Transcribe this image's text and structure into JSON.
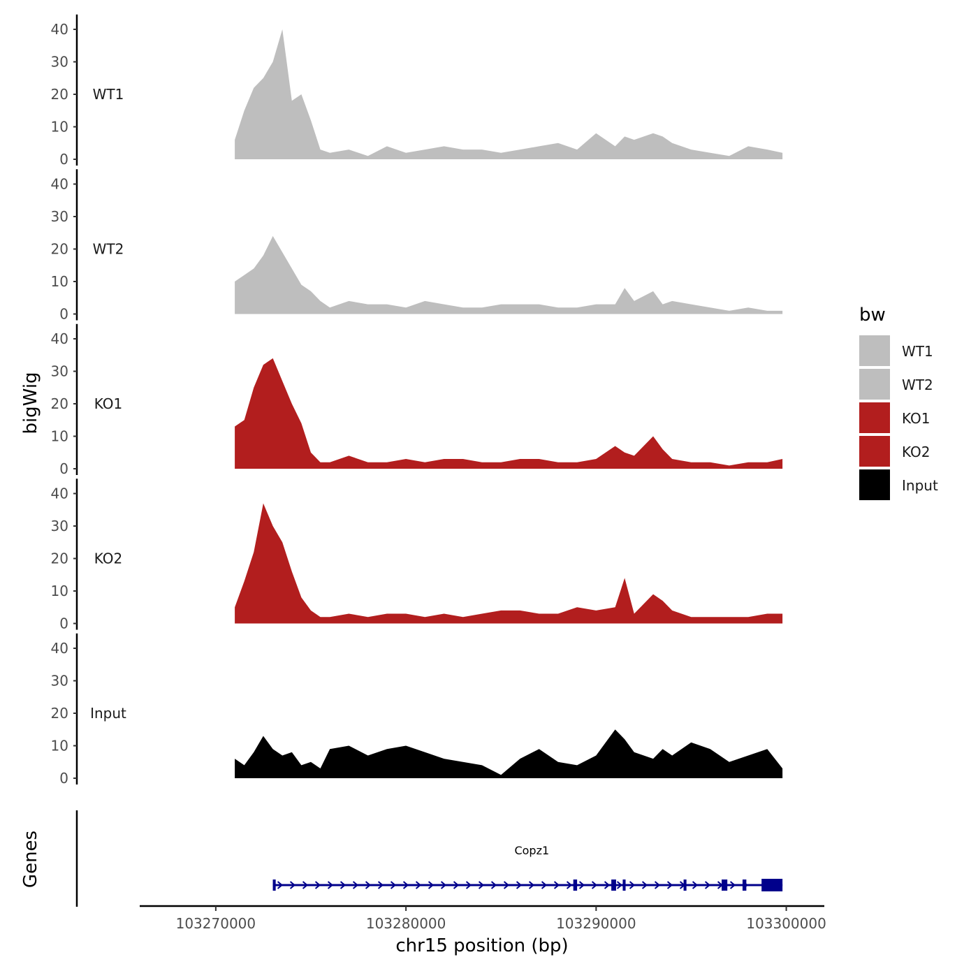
{
  "chart_data": {
    "type": "area",
    "ylabel": "bigWig",
    "genes_label": "Genes",
    "xlabel": "chr15 position (bp)",
    "xlim": [
      103266000,
      103302000
    ],
    "x_ticks": [
      103270000,
      103280000,
      103290000,
      103300000
    ],
    "x_tick_labels": [
      "103270000",
      "103280000",
      "103290000",
      "103300000"
    ],
    "ylim": [
      0,
      42
    ],
    "y_ticks": [
      0,
      10,
      20,
      30,
      40
    ],
    "y_tick_labels": [
      "0",
      "10",
      "20",
      "30",
      "40"
    ],
    "legend": {
      "title": "bw",
      "position": "right",
      "entries": [
        {
          "label": "WT1",
          "color": "#bebebe"
        },
        {
          "label": "WT2",
          "color": "#bebebe"
        },
        {
          "label": "KO1",
          "color": "#b21e1e"
        },
        {
          "label": "KO2",
          "color": "#b21e1e"
        },
        {
          "label": "Input",
          "color": "#000000"
        }
      ]
    },
    "x": [
      103271000,
      103271500,
      103272000,
      103272500,
      103273000,
      103273500,
      103274000,
      103274500,
      103275000,
      103275500,
      103276000,
      103277000,
      103278000,
      103279000,
      103280000,
      103281000,
      103282000,
      103283000,
      103284000,
      103285000,
      103286000,
      103287000,
      103288000,
      103289000,
      103290000,
      103291000,
      103291500,
      103292000,
      103293000,
      103293500,
      103294000,
      103295000,
      103296000,
      103297000,
      103298000,
      103299000,
      103299800
    ],
    "series": [
      {
        "name": "WT1",
        "color": "#bebebe",
        "values": [
          6,
          15,
          22,
          25,
          30,
          40,
          18,
          20,
          12,
          3,
          2,
          3,
          1,
          4,
          2,
          3,
          4,
          3,
          3,
          2,
          3,
          4,
          5,
          3,
          8,
          4,
          7,
          6,
          8,
          7,
          5,
          3,
          2,
          1,
          4,
          3,
          2
        ]
      },
      {
        "name": "WT2",
        "color": "#bebebe",
        "values": [
          10,
          12,
          14,
          18,
          24,
          19,
          14,
          9,
          7,
          4,
          2,
          4,
          3,
          3,
          2,
          4,
          3,
          2,
          2,
          3,
          3,
          3,
          2,
          2,
          3,
          3,
          8,
          4,
          7,
          3,
          4,
          3,
          2,
          1,
          2,
          1,
          1
        ]
      },
      {
        "name": "KO1",
        "color": "#b21e1e",
        "values": [
          13,
          15,
          25,
          32,
          34,
          27,
          20,
          14,
          5,
          2,
          2,
          4,
          2,
          2,
          3,
          2,
          3,
          3,
          2,
          2,
          3,
          3,
          2,
          2,
          3,
          7,
          5,
          4,
          10,
          6,
          3,
          2,
          2,
          1,
          2,
          2,
          3
        ]
      },
      {
        "name": "KO2",
        "color": "#b21e1e",
        "values": [
          5,
          13,
          22,
          37,
          30,
          25,
          16,
          8,
          4,
          2,
          2,
          3,
          2,
          3,
          3,
          2,
          3,
          2,
          3,
          4,
          4,
          3,
          3,
          5,
          4,
          5,
          14,
          3,
          9,
          7,
          4,
          2,
          2,
          2,
          2,
          3,
          3
        ]
      },
      {
        "name": "Input",
        "color": "#000000",
        "values": [
          6,
          4,
          8,
          13,
          9,
          7,
          8,
          4,
          5,
          3,
          9,
          10,
          7,
          9,
          10,
          8,
          6,
          5,
          4,
          1,
          6,
          9,
          5,
          4,
          7,
          15,
          12,
          8,
          6,
          9,
          7,
          11,
          9,
          5,
          7,
          9,
          3
        ]
      }
    ],
    "genes": [
      {
        "name": "Copz1",
        "start": 103273000,
        "end": 103299800,
        "strand": "+",
        "color": "#00008b",
        "exons": [
          [
            103273000,
            103273150
          ],
          [
            103288800,
            103289000
          ],
          [
            103290800,
            103291050
          ],
          [
            103291400,
            103291550
          ],
          [
            103294600,
            103294750
          ],
          [
            103296600,
            103296900
          ],
          [
            103297700,
            103297900
          ],
          [
            103298700,
            103299800
          ]
        ]
      }
    ]
  }
}
